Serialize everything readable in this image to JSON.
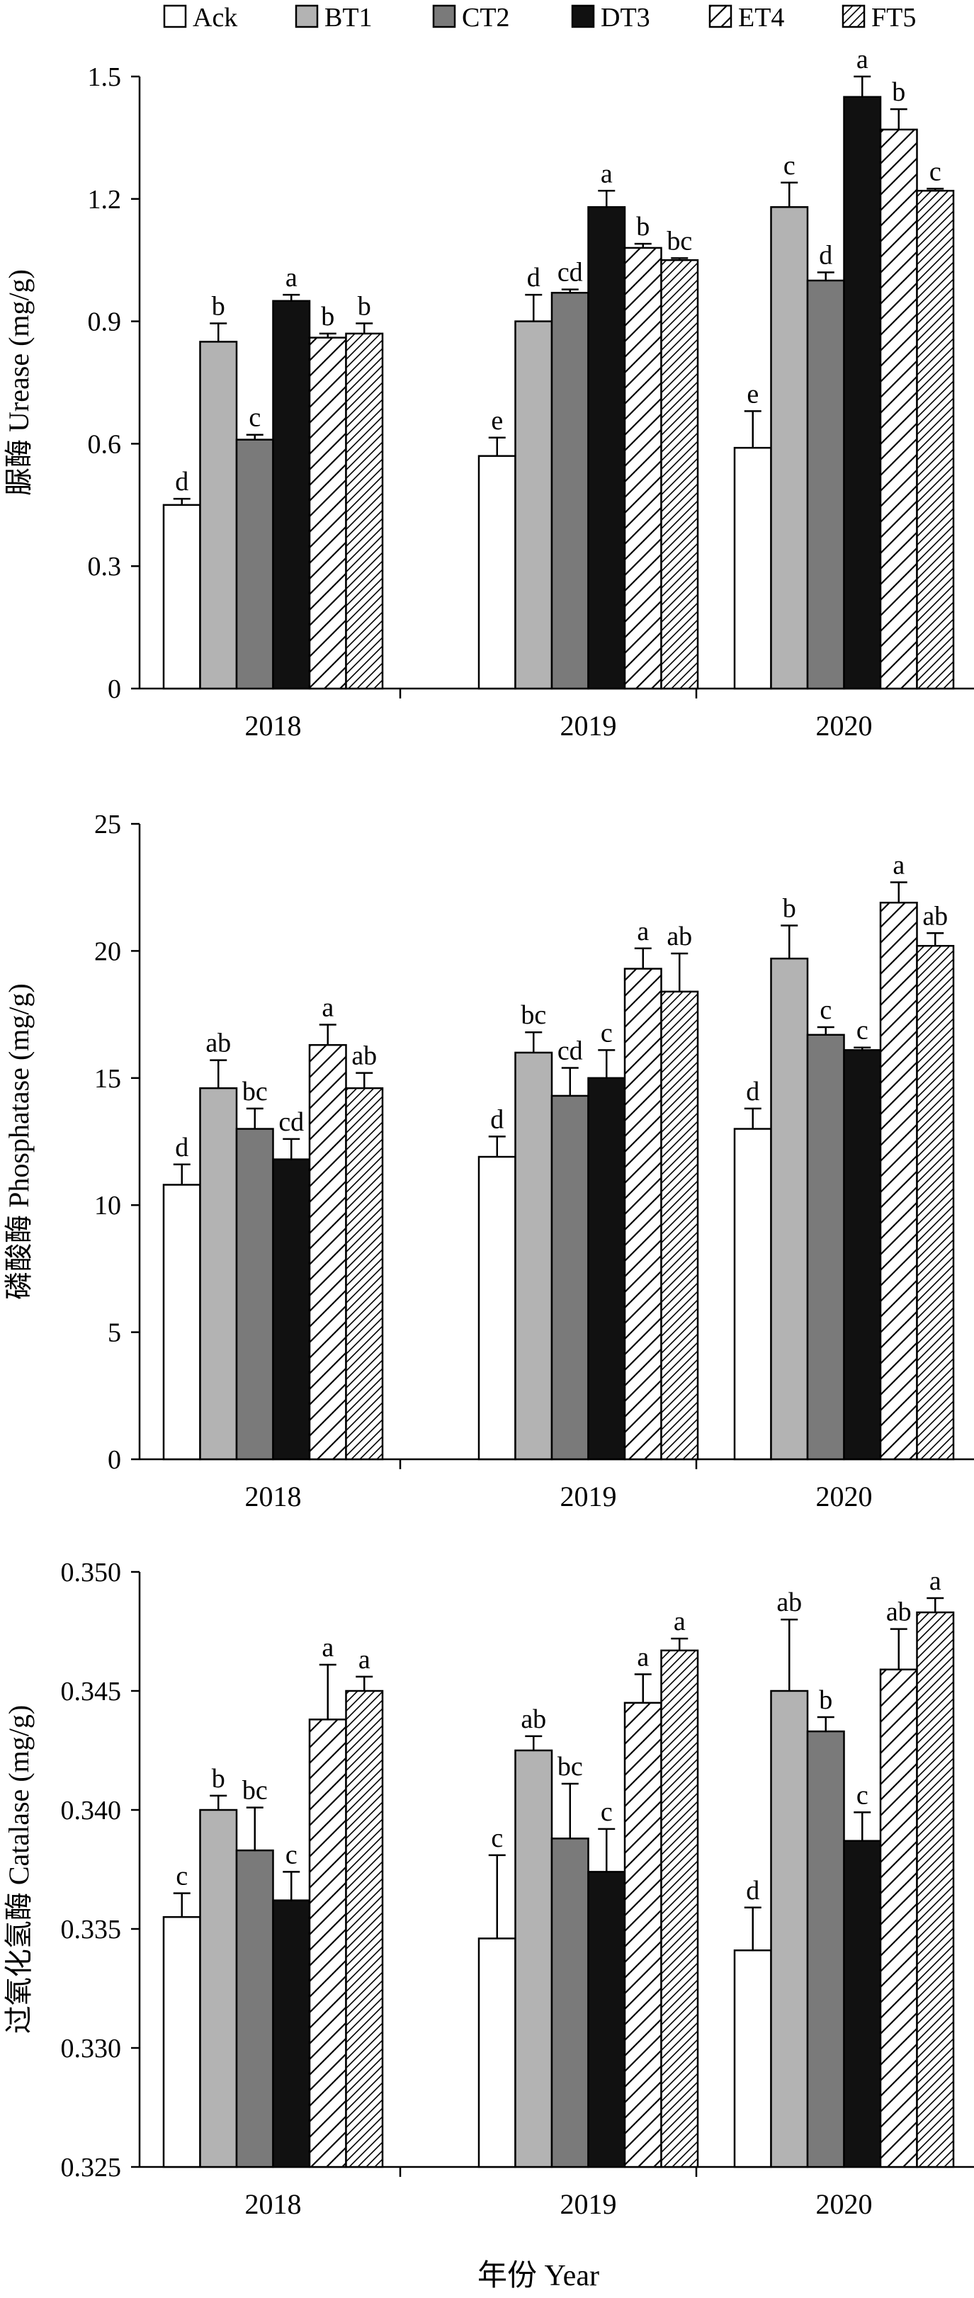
{
  "legend": {
    "entries": [
      {
        "key": "Ack",
        "label": "Ack",
        "fill": "#ffffff",
        "pattern": "none"
      },
      {
        "key": "BT1",
        "label": "BT1",
        "fill": "#b3b3b3",
        "pattern": "none"
      },
      {
        "key": "CT2",
        "label": "CT2",
        "fill": "#7a7a7a",
        "pattern": "none"
      },
      {
        "key": "DT3",
        "label": "DT3",
        "fill": "#111111",
        "pattern": "none"
      },
      {
        "key": "ET4",
        "label": "ET4",
        "fill": "#ffffff",
        "pattern": "wide-diagonal"
      },
      {
        "key": "FT5",
        "label": "FT5",
        "fill": "#ffffff",
        "pattern": "dense-diagonal"
      }
    ],
    "placement": "top"
  },
  "xlabel": "年份 Year",
  "chart_data": [
    {
      "type": "bar",
      "ylabel": "脲酶 Urease (mg/g)",
      "categories": [
        "2018",
        "2019",
        "2020"
      ],
      "ylim": [
        0,
        1.5
      ],
      "yticks": [
        0,
        0.3,
        0.6,
        0.9,
        1.2,
        1.5
      ],
      "ytick_labels": [
        "0",
        "0.3",
        "0.6",
        "0.9",
        "1.2",
        "1.5"
      ],
      "grid": false,
      "series": [
        {
          "name": "Ack",
          "values": [
            0.45,
            0.57,
            0.59
          ],
          "errors": [
            0.015,
            0.045,
            0.09
          ],
          "letters": [
            "d",
            "e",
            "e"
          ]
        },
        {
          "name": "BT1",
          "values": [
            0.85,
            0.9,
            1.18
          ],
          "errors": [
            0.045,
            0.065,
            0.06
          ],
          "letters": [
            "b",
            "d",
            "c"
          ]
        },
        {
          "name": "CT2",
          "values": [
            0.61,
            0.97,
            1.0
          ],
          "errors": [
            0.012,
            0.008,
            0.02
          ],
          "letters": [
            "c",
            "cd",
            "d"
          ]
        },
        {
          "name": "DT3",
          "values": [
            0.95,
            1.18,
            1.45
          ],
          "errors": [
            0.015,
            0.04,
            0.05
          ],
          "letters": [
            "a",
            "a",
            "a"
          ]
        },
        {
          "name": "ET4",
          "values": [
            0.86,
            1.08,
            1.37
          ],
          "errors": [
            0.01,
            0.01,
            0.05
          ],
          "letters": [
            "b",
            "b",
            "b"
          ]
        },
        {
          "name": "FT5",
          "values": [
            0.87,
            1.05,
            1.22
          ],
          "errors": [
            0.025,
            0.005,
            0.005
          ],
          "letters": [
            "b",
            "bc",
            "c"
          ]
        }
      ]
    },
    {
      "type": "bar",
      "ylabel": "磷酸酶 Phosphatase (mg/g)",
      "categories": [
        "2018",
        "2019",
        "2020"
      ],
      "ylim": [
        0,
        25
      ],
      "yticks": [
        0,
        5,
        10,
        15,
        20,
        25
      ],
      "ytick_labels": [
        "0",
        "5",
        "10",
        "15",
        "20",
        "25"
      ],
      "grid": false,
      "series": [
        {
          "name": "Ack",
          "values": [
            10.8,
            11.9,
            13.0
          ],
          "errors": [
            0.8,
            0.8,
            0.8
          ],
          "letters": [
            "d",
            "d",
            "d"
          ]
        },
        {
          "name": "BT1",
          "values": [
            14.6,
            16.0,
            19.7
          ],
          "errors": [
            1.1,
            0.8,
            1.3
          ],
          "letters": [
            "ab",
            "bc",
            "b"
          ]
        },
        {
          "name": "CT2",
          "values": [
            13.0,
            14.3,
            16.7
          ],
          "errors": [
            0.8,
            1.1,
            0.3
          ],
          "letters": [
            "bc",
            "cd",
            "c"
          ]
        },
        {
          "name": "DT3",
          "values": [
            11.8,
            15.0,
            16.1
          ],
          "errors": [
            0.8,
            1.1,
            0.1
          ],
          "letters": [
            "cd",
            "c",
            "c"
          ]
        },
        {
          "name": "ET4",
          "values": [
            16.3,
            19.3,
            21.9
          ],
          "errors": [
            0.8,
            0.8,
            0.8
          ],
          "letters": [
            "a",
            "a",
            "a"
          ]
        },
        {
          "name": "FT5",
          "values": [
            14.6,
            18.4,
            20.2
          ],
          "errors": [
            0.6,
            1.5,
            0.5
          ],
          "letters": [
            "ab",
            "ab",
            "ab"
          ]
        }
      ]
    },
    {
      "type": "bar",
      "ylabel": "过氧化氢酶 Catalase (mg/g)",
      "categories": [
        "2018",
        "2019",
        "2020"
      ],
      "ylim": [
        0.325,
        0.35
      ],
      "yticks": [
        0.325,
        0.33,
        0.335,
        0.34,
        0.345,
        0.35
      ],
      "ytick_labels": [
        "0.325",
        "0.330",
        "0.335",
        "0.340",
        "0.345",
        "0.350"
      ],
      "grid": false,
      "series": [
        {
          "name": "Ack",
          "values": [
            0.3355,
            0.3346,
            0.3341
          ],
          "errors": [
            0.001,
            0.0035,
            0.0018
          ],
          "letters": [
            "c",
            "c",
            "d"
          ]
        },
        {
          "name": "BT1",
          "values": [
            0.34,
            0.3425,
            0.345
          ],
          "errors": [
            0.0006,
            0.0006,
            0.003
          ],
          "letters": [
            "b",
            "ab",
            "ab"
          ]
        },
        {
          "name": "CT2",
          "values": [
            0.3383,
            0.3388,
            0.3433
          ],
          "errors": [
            0.0018,
            0.0023,
            0.0006
          ],
          "letters": [
            "bc",
            "bc",
            "b"
          ]
        },
        {
          "name": "DT3",
          "values": [
            0.3362,
            0.3374,
            0.3387
          ],
          "errors": [
            0.0012,
            0.0018,
            0.0012
          ],
          "letters": [
            "c",
            "c",
            "c"
          ]
        },
        {
          "name": "ET4",
          "values": [
            0.3438,
            0.3445,
            0.3459
          ],
          "errors": [
            0.0023,
            0.0012,
            0.0017
          ],
          "letters": [
            "a",
            "a",
            "ab"
          ]
        },
        {
          "name": "FT5",
          "values": [
            0.345,
            0.3467,
            0.3483
          ],
          "errors": [
            0.0006,
            0.0005,
            0.0006
          ],
          "letters": [
            "a",
            "a",
            "a"
          ]
        }
      ]
    }
  ]
}
